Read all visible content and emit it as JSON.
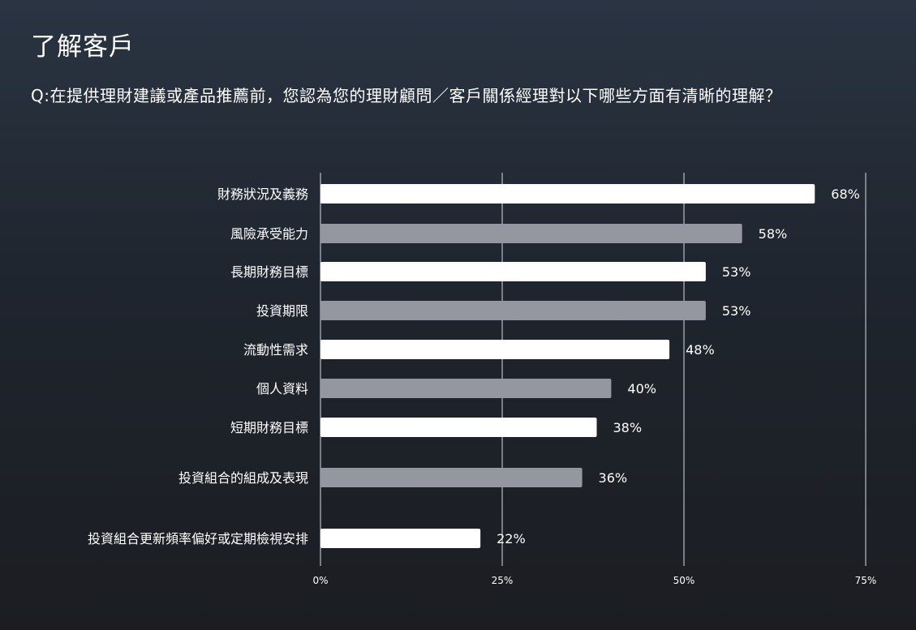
{
  "page": {
    "title": "了解客戶",
    "question": "Q:在提供理財建議或產品推薦前，您認為您的理財顧問／客戶關係經理對以下哪些方面有清晰的理解？"
  },
  "colors": {
    "bar_primary": "#ffffff",
    "bar_secondary": "#9497a0",
    "gridline": "#b8bcc4"
  },
  "chart_data": {
    "type": "bar",
    "orientation": "horizontal",
    "categories": [
      "財務狀況及義務",
      "風險承受能力",
      "長期財務目標",
      "投資期限",
      "流動性需求",
      "個人資料",
      "短期財務目標",
      "投資組合的組成及表現",
      "投資組合更新頻率偏好或定期檢視安排"
    ],
    "values": [
      68,
      58,
      53,
      53,
      48,
      40,
      38,
      36,
      22
    ],
    "value_labels": [
      "68%",
      "58%",
      "53%",
      "53%",
      "48%",
      "40%",
      "38%",
      "36%",
      "22%"
    ],
    "bar_colors": [
      "primary",
      "secondary",
      "primary",
      "secondary",
      "primary",
      "secondary",
      "primary",
      "secondary",
      "primary"
    ],
    "xlim": [
      0,
      75
    ],
    "xticks": [
      0,
      25,
      50,
      75
    ],
    "xtick_labels": [
      "0%",
      "25%",
      "50%",
      "75%"
    ],
    "grid": true,
    "xlabel": "",
    "ylabel": ""
  }
}
